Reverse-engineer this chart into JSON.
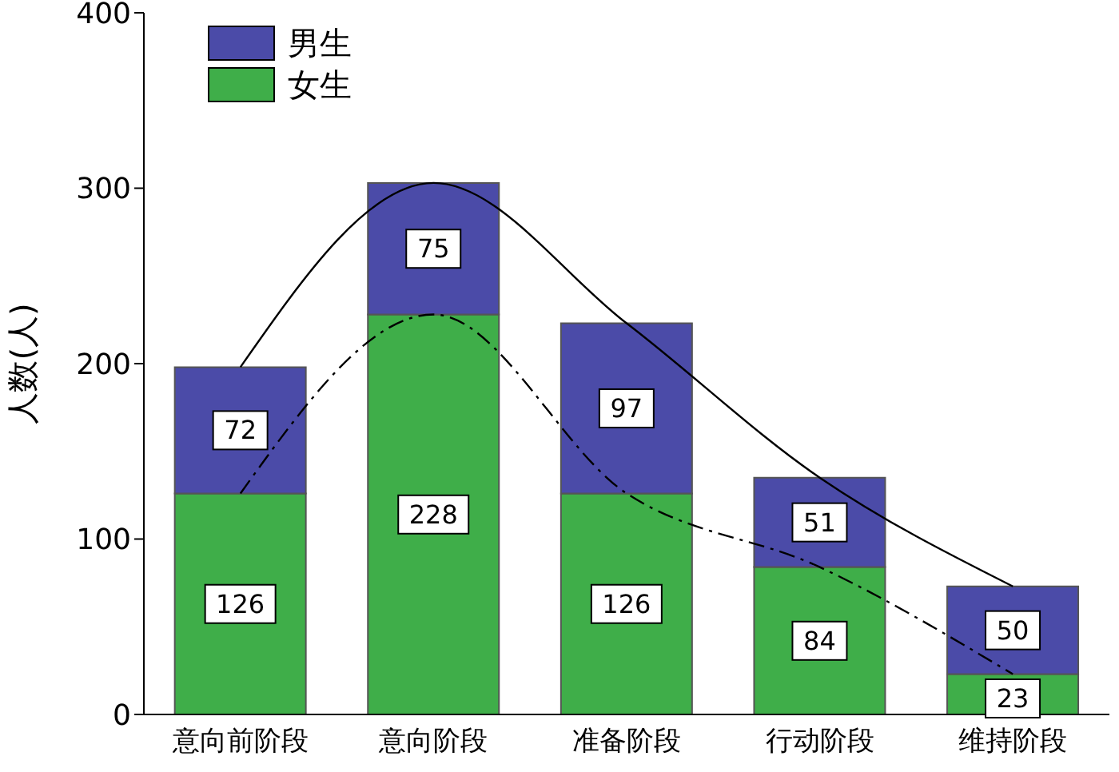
{
  "chart_data": {
    "type": "bar",
    "stacked": true,
    "ylabel": "人数(人)",
    "categories": [
      "意向前阶段",
      "意向阶段",
      "准备阶段",
      "行动阶段",
      "维持阶段"
    ],
    "series": [
      {
        "name": "女生",
        "color": "#3fae49",
        "values": [
          126,
          228,
          126,
          84,
          23
        ],
        "value_labels": [
          "126",
          "228",
          "126",
          "84",
          "23"
        ]
      },
      {
        "name": "男生",
        "color": "#4b4ba8",
        "values": [
          72,
          75,
          97,
          51,
          50
        ],
        "value_labels": [
          "72",
          "75",
          "97",
          "51",
          "50"
        ]
      },
      {
        "type": "line",
        "color": "#000000",
        "line_style": "solid",
        "values": [
          198,
          303,
          223,
          135,
          73
        ]
      },
      {
        "type": "line",
        "color": "#000000",
        "line_style": "dashed",
        "values": [
          126,
          228,
          126,
          84,
          23
        ]
      }
    ],
    "ylim": [
      0,
      400
    ],
    "yticks": [
      0,
      100,
      200,
      300,
      400
    ],
    "legend": "top left",
    "marker": "none"
  }
}
